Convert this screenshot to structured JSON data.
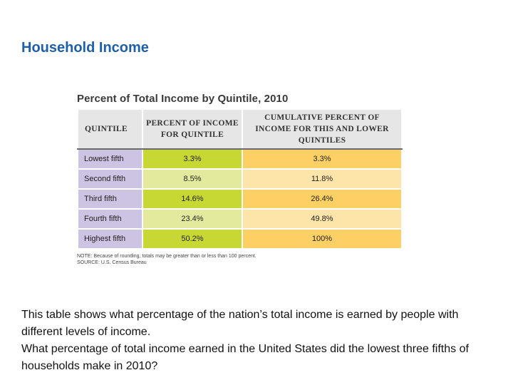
{
  "slide": {
    "title": "Household Income"
  },
  "table": {
    "title": "Percent of Total Income by Quintile, 2010",
    "headers": {
      "quintile": "QUINTILE",
      "percent": "PERCENT OF INCOME FOR QUINTILE",
      "cumulative": "CUMULATIVE PERCENT OF INCOME FOR THIS AND LOWER QUINTILES"
    },
    "rows": [
      {
        "quintile": "Lowest fifth",
        "percent": "3.3%",
        "cumulative": "3.3%"
      },
      {
        "quintile": "Second fifth",
        "percent": "8.5%",
        "cumulative": "11.8%"
      },
      {
        "quintile": "Third fifth",
        "percent": "14.6%",
        "cumulative": "26.4%"
      },
      {
        "quintile": "Fourth fifth",
        "percent": "23.4%",
        "cumulative": "49.8%"
      },
      {
        "quintile": "Highest fifth",
        "percent": "50.2%",
        "cumulative": "100%"
      }
    ],
    "note": "NOTE: Because of rounding, totals may be greater than or less than 100 percent.",
    "source": "SOURCE: U.S. Census Bureau"
  },
  "body": {
    "paragraph1": "This table shows what percentage of the nation’s total income is earned by people with different levels of income.",
    "paragraph2": "What percentage of total income earned in the United States did the lowest three fifths of households make in 2010?"
  },
  "colors": {
    "title": "#1f5fa8",
    "label_cell": "#cdc3e3",
    "percent_dark": "#c7d733",
    "percent_light": "#e3ea9e",
    "cumulative_dark": "#fcd064",
    "cumulative_light": "#fde4a9",
    "header": "#e6e6e6"
  }
}
